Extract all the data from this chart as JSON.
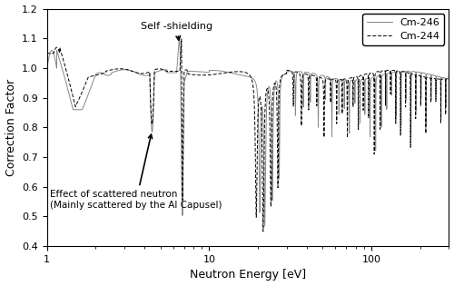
{
  "xlabel": "Neutron Energy [eV]",
  "ylabel": "Correction Factor",
  "xlim": [
    1,
    300
  ],
  "ylim": [
    0.4,
    1.2
  ],
  "yticks": [
    0.4,
    0.5,
    0.6,
    0.7,
    0.8,
    0.9,
    1.0,
    1.1,
    1.2
  ],
  "legend_labels": [
    "Cm-246",
    "Cm-244"
  ],
  "line1_color": "#888888",
  "line2_color": "#000000",
  "line1_style": "solid",
  "line2_style": "dashed",
  "annotation1_text": "Self -shielding",
  "annotation2_line1": "Effect of scattered neutron",
  "annotation2_line2": "(Mainly scattered by the Al Capusel)",
  "background_color": "#ffffff"
}
